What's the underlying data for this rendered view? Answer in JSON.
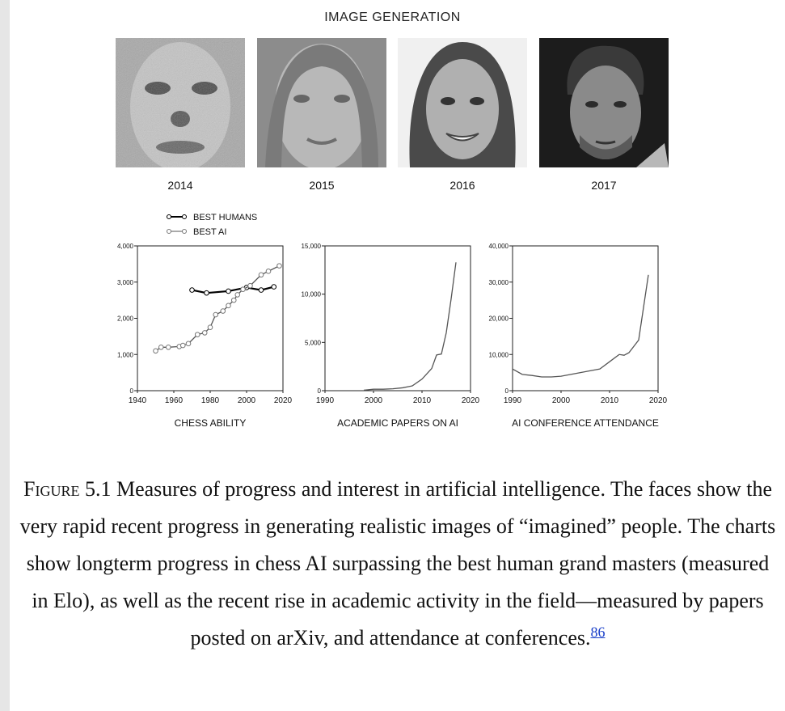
{
  "image_generation": {
    "title": "IMAGE GENERATION",
    "faces": [
      {
        "year": "2014"
      },
      {
        "year": "2015"
      },
      {
        "year": "2016"
      },
      {
        "year": "2017"
      }
    ]
  },
  "chart_data": [
    {
      "type": "line",
      "xlabel": "CHESS ABILITY",
      "x_ticks": [
        "1940",
        "1960",
        "1980",
        "2000",
        "2020"
      ],
      "y_ticks": [
        "0",
        "1,000",
        "2,000",
        "3,000",
        "4,000"
      ],
      "xlim": [
        1940,
        2020
      ],
      "ylim": [
        0,
        4000
      ],
      "legend": [
        "BEST HUMANS",
        "BEST AI"
      ],
      "series": [
        {
          "name": "BEST HUMANS",
          "x": [
            1970,
            1978,
            1990,
            2000,
            2008,
            2015
          ],
          "y": [
            2780,
            2700,
            2750,
            2850,
            2780,
            2870
          ]
        },
        {
          "name": "BEST AI",
          "x": [
            1950,
            1953,
            1957,
            1963,
            1965,
            1968,
            1973,
            1977,
            1980,
            1983,
            1987,
            1990,
            1993,
            1995,
            1998,
            2002,
            2008,
            2012,
            2018
          ],
          "y": [
            1100,
            1200,
            1200,
            1220,
            1250,
            1300,
            1550,
            1600,
            1750,
            2100,
            2200,
            2350,
            2500,
            2650,
            2800,
            2900,
            3200,
            3300,
            3450
          ]
        }
      ]
    },
    {
      "type": "line",
      "xlabel": "ACADEMIC PAPERS ON AI",
      "x_ticks": [
        "1990",
        "2000",
        "2010",
        "2020"
      ],
      "y_ticks": [
        "0",
        "5,000",
        "10,000",
        "15,000"
      ],
      "xlim": [
        1990,
        2020
      ],
      "ylim": [
        0,
        15000
      ],
      "series": [
        {
          "x": [
            1998,
            2000,
            2002,
            2004,
            2006,
            2008,
            2010,
            2012,
            2013,
            2014,
            2015,
            2016,
            2017
          ],
          "y": [
            50,
            150,
            150,
            200,
            300,
            500,
            1200,
            2300,
            3700,
            3800,
            6000,
            9500,
            13300
          ]
        }
      ]
    },
    {
      "type": "line",
      "xlabel": "AI CONFERENCE ATTENDANCE",
      "x_ticks": [
        "1990",
        "2000",
        "2010",
        "2020"
      ],
      "y_ticks": [
        "0",
        "10,000",
        "20,000",
        "30,000",
        "40,000"
      ],
      "xlim": [
        1990,
        2020
      ],
      "ylim": [
        0,
        40000
      ],
      "series": [
        {
          "x": [
            1990,
            1992,
            1994,
            1996,
            1998,
            2000,
            2002,
            2004,
            2006,
            2008,
            2010,
            2012,
            2013,
            2014,
            2016,
            2018
          ],
          "y": [
            6000,
            4500,
            4200,
            3800,
            3800,
            4000,
            4500,
            5000,
            5500,
            6000,
            8000,
            10000,
            9800,
            10500,
            14000,
            32000
          ]
        }
      ]
    }
  ],
  "caption": {
    "label": "Figure 5.1",
    "text": " Measures of progress and interest in artificial intelligence. The faces show the very rapid recent progress in generating realistic images of “imagined” people. The charts show longterm progress in chess AI surpassing the best human grand masters (measured in Elo), as well as the recent rise in academic activity in the field—measured by papers posted on arXiv, and attendance at conferences.",
    "footnote": "86"
  }
}
